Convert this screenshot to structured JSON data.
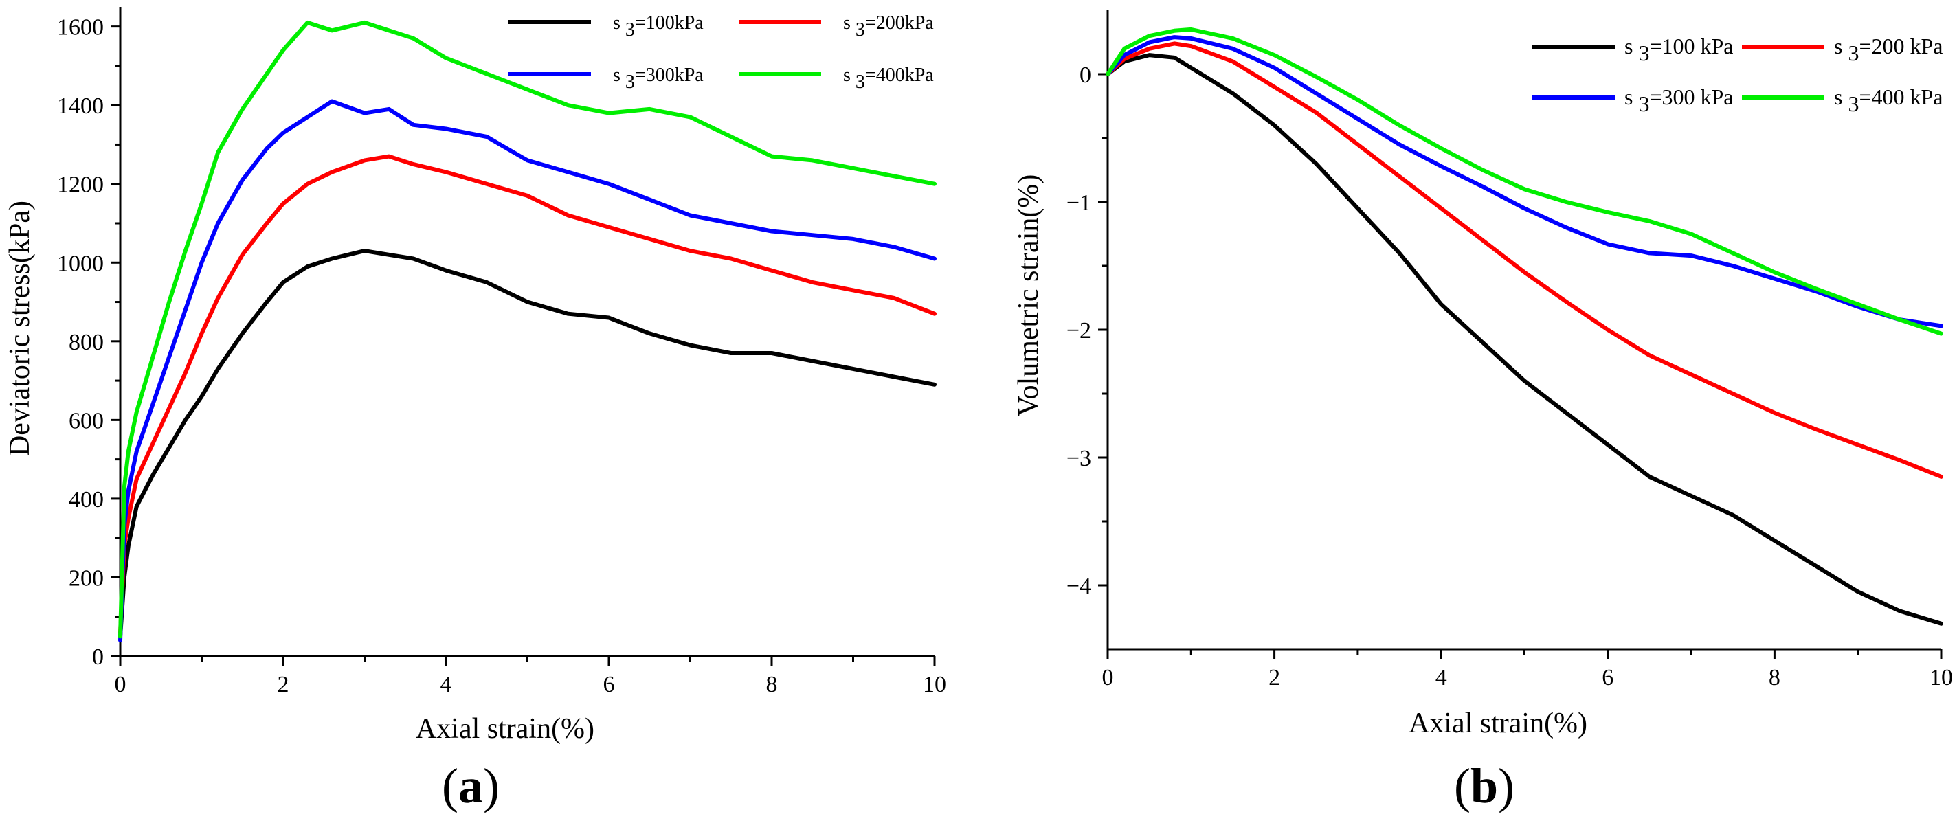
{
  "colors": {
    "s100": "#000000",
    "s200": "#ff0000",
    "s300": "#0000ff",
    "s400": "#00ee00"
  },
  "chart_data": [
    {
      "type": "line",
      "panel": "a",
      "panel_open": "(",
      "panel_letter": "a",
      "panel_close": ")",
      "title": "",
      "xlabel": "Axial strain(%)",
      "ylabel": "Deviatoric stress(kPa)",
      "xlim": [
        0,
        10
      ],
      "ylim": [
        0,
        1650
      ],
      "xticks": [
        "0",
        "2",
        "4",
        "6",
        "8",
        "10"
      ],
      "xtick_values": [
        0,
        2,
        4,
        6,
        8,
        10
      ],
      "yticks": [
        "0",
        "200",
        "400",
        "600",
        "800",
        "1000",
        "1200",
        "1400",
        "1600"
      ],
      "ytick_values": [
        0,
        200,
        400,
        600,
        800,
        1000,
        1200,
        1400,
        1600
      ],
      "legend_position": "top-right",
      "series": [
        {
          "name": "s 3=100kPa",
          "legend_prefix": "s ",
          "legend_sub": "3",
          "legend_suffix": "=100kPa",
          "color_key": "s100",
          "x": [
            0,
            0.05,
            0.1,
            0.2,
            0.4,
            0.6,
            0.8,
            1.0,
            1.2,
            1.5,
            1.8,
            2.0,
            2.3,
            2.6,
            3.0,
            3.3,
            3.6,
            4.0,
            4.5,
            5.0,
            5.5,
            6.0,
            6.5,
            7.0,
            7.5,
            8.0,
            8.5,
            9.0,
            9.5,
            10.0
          ],
          "y": [
            50,
            200,
            280,
            380,
            460,
            530,
            600,
            660,
            730,
            820,
            900,
            950,
            990,
            1010,
            1030,
            1020,
            1010,
            980,
            950,
            900,
            870,
            860,
            820,
            790,
            770,
            770,
            750,
            730,
            710,
            690
          ]
        },
        {
          "name": "s 3=200kPa",
          "legend_prefix": "s ",
          "legend_sub": "3",
          "legend_suffix": "=200kPa",
          "color_key": "s200",
          "x": [
            0,
            0.05,
            0.1,
            0.2,
            0.4,
            0.6,
            0.8,
            1.0,
            1.2,
            1.5,
            1.8,
            2.0,
            2.3,
            2.6,
            3.0,
            3.3,
            3.6,
            4.0,
            4.5,
            5.0,
            5.5,
            6.0,
            6.5,
            7.0,
            7.5,
            8.0,
            8.5,
            9.0,
            9.5,
            10.0
          ],
          "y": [
            60,
            280,
            350,
            450,
            540,
            630,
            720,
            820,
            910,
            1020,
            1100,
            1150,
            1200,
            1230,
            1260,
            1270,
            1250,
            1230,
            1200,
            1170,
            1120,
            1090,
            1060,
            1030,
            1010,
            980,
            950,
            930,
            910,
            870
          ]
        },
        {
          "name": "s 3=300kPa",
          "legend_prefix": "s ",
          "legend_sub": "3",
          "legend_suffix": "=300kPa",
          "color_key": "s300",
          "x": [
            0,
            0.05,
            0.1,
            0.2,
            0.4,
            0.6,
            0.8,
            1.0,
            1.2,
            1.5,
            1.8,
            2.0,
            2.3,
            2.6,
            3.0,
            3.3,
            3.6,
            4.0,
            4.5,
            5.0,
            5.5,
            6.0,
            6.5,
            7.0,
            7.5,
            8.0,
            8.5,
            9.0,
            9.5,
            10.0
          ],
          "y": [
            40,
            330,
            420,
            520,
            640,
            760,
            880,
            1000,
            1100,
            1210,
            1290,
            1330,
            1370,
            1410,
            1380,
            1390,
            1350,
            1340,
            1320,
            1260,
            1230,
            1200,
            1160,
            1120,
            1100,
            1080,
            1070,
            1060,
            1040,
            1010
          ]
        },
        {
          "name": "s 3=400kPa",
          "legend_prefix": "s ",
          "legend_sub": "3",
          "legend_suffix": "=400kPa",
          "color_key": "s400",
          "x": [
            0,
            0.05,
            0.1,
            0.2,
            0.4,
            0.6,
            0.8,
            1.0,
            1.2,
            1.5,
            1.8,
            2.0,
            2.3,
            2.6,
            3.0,
            3.3,
            3.6,
            4.0,
            4.5,
            5.0,
            5.5,
            6.0,
            6.5,
            7.0,
            7.5,
            8.0,
            8.5,
            9.0,
            9.5,
            10.0
          ],
          "y": [
            50,
            430,
            520,
            620,
            760,
            900,
            1030,
            1150,
            1280,
            1390,
            1480,
            1540,
            1610,
            1590,
            1610,
            1590,
            1570,
            1520,
            1480,
            1440,
            1400,
            1380,
            1390,
            1370,
            1320,
            1270,
            1260,
            1240,
            1220,
            1200
          ]
        }
      ]
    },
    {
      "type": "line",
      "panel": "b",
      "panel_open": "(",
      "panel_letter": "b",
      "panel_close": ")",
      "title": "",
      "xlabel": "Axial strain(%)",
      "ylabel": "Volumetric strain(%)",
      "xlim": [
        0,
        10
      ],
      "ylim": [
        -4.5,
        0.5
      ],
      "xticks": [
        "0",
        "2",
        "4",
        "6",
        "8",
        "10"
      ],
      "xtick_values": [
        0,
        2,
        4,
        6,
        8,
        10
      ],
      "yticks": [
        "0",
        "−1",
        "−2",
        "−3",
        "−4"
      ],
      "ytick_values": [
        0,
        -1,
        -2,
        -3,
        -4
      ],
      "legend_position": "top-right",
      "series": [
        {
          "name": "s 3=100 kPa",
          "legend_prefix": "s ",
          "legend_sub": "3",
          "legend_suffix": "=100 kPa",
          "color_key": "s100",
          "x": [
            0,
            0.2,
            0.5,
            0.8,
            1.0,
            1.5,
            2.0,
            2.5,
            3.0,
            3.5,
            4.0,
            4.5,
            5.0,
            5.5,
            6.0,
            6.5,
            7.0,
            7.5,
            8.0,
            8.5,
            9.0,
            9.5,
            10.0
          ],
          "y": [
            0,
            0.1,
            0.15,
            0.13,
            0.05,
            -0.15,
            -0.4,
            -0.7,
            -1.05,
            -1.4,
            -1.8,
            -2.1,
            -2.4,
            -2.65,
            -2.9,
            -3.15,
            -3.3,
            -3.45,
            -3.65,
            -3.85,
            -4.05,
            -4.2,
            -4.3
          ]
        },
        {
          "name": "s 3=200 kPa",
          "legend_prefix": "s ",
          "legend_sub": "3",
          "legend_suffix": "=200 kPa",
          "color_key": "s200",
          "x": [
            0,
            0.2,
            0.5,
            0.8,
            1.0,
            1.5,
            2.0,
            2.5,
            3.0,
            3.5,
            4.0,
            4.5,
            5.0,
            5.5,
            6.0,
            6.5,
            7.0,
            7.5,
            8.0,
            8.5,
            9.0,
            9.5,
            10.0
          ],
          "y": [
            0,
            0.12,
            0.2,
            0.24,
            0.22,
            0.1,
            -0.1,
            -0.3,
            -0.55,
            -0.8,
            -1.05,
            -1.3,
            -1.55,
            -1.78,
            -2.0,
            -2.2,
            -2.35,
            -2.5,
            -2.65,
            -2.78,
            -2.9,
            -3.02,
            -3.15
          ]
        },
        {
          "name": "s 3=300 kPa",
          "legend_prefix": "s ",
          "legend_sub": "3",
          "legend_suffix": "=300 kPa",
          "color_key": "s300",
          "x": [
            0,
            0.2,
            0.5,
            0.8,
            1.0,
            1.5,
            2.0,
            2.5,
            3.0,
            3.5,
            4.0,
            4.5,
            5.0,
            5.5,
            6.0,
            6.5,
            7.0,
            7.5,
            8.0,
            8.5,
            9.0,
            9.5,
            10.0
          ],
          "y": [
            0,
            0.15,
            0.25,
            0.29,
            0.28,
            0.2,
            0.05,
            -0.15,
            -0.35,
            -0.55,
            -0.72,
            -0.88,
            -1.05,
            -1.2,
            -1.33,
            -1.4,
            -1.42,
            -1.5,
            -1.6,
            -1.7,
            -1.82,
            -1.92,
            -1.97
          ]
        },
        {
          "name": "s 3=400 kPa",
          "legend_prefix": "s ",
          "legend_sub": "3",
          "legend_suffix": "=400 kPa",
          "color_key": "s400",
          "x": [
            0,
            0.2,
            0.5,
            0.8,
            1.0,
            1.5,
            2.0,
            2.5,
            3.0,
            3.5,
            4.0,
            4.5,
            5.0,
            5.5,
            6.0,
            6.5,
            7.0,
            7.5,
            8.0,
            8.5,
            9.0,
            9.5,
            10.0
          ],
          "y": [
            0,
            0.2,
            0.3,
            0.34,
            0.35,
            0.28,
            0.15,
            -0.02,
            -0.2,
            -0.4,
            -0.58,
            -0.75,
            -0.9,
            -1.0,
            -1.08,
            -1.15,
            -1.25,
            -1.4,
            -1.55,
            -1.68,
            -1.8,
            -1.92,
            -2.03
          ]
        }
      ]
    }
  ]
}
